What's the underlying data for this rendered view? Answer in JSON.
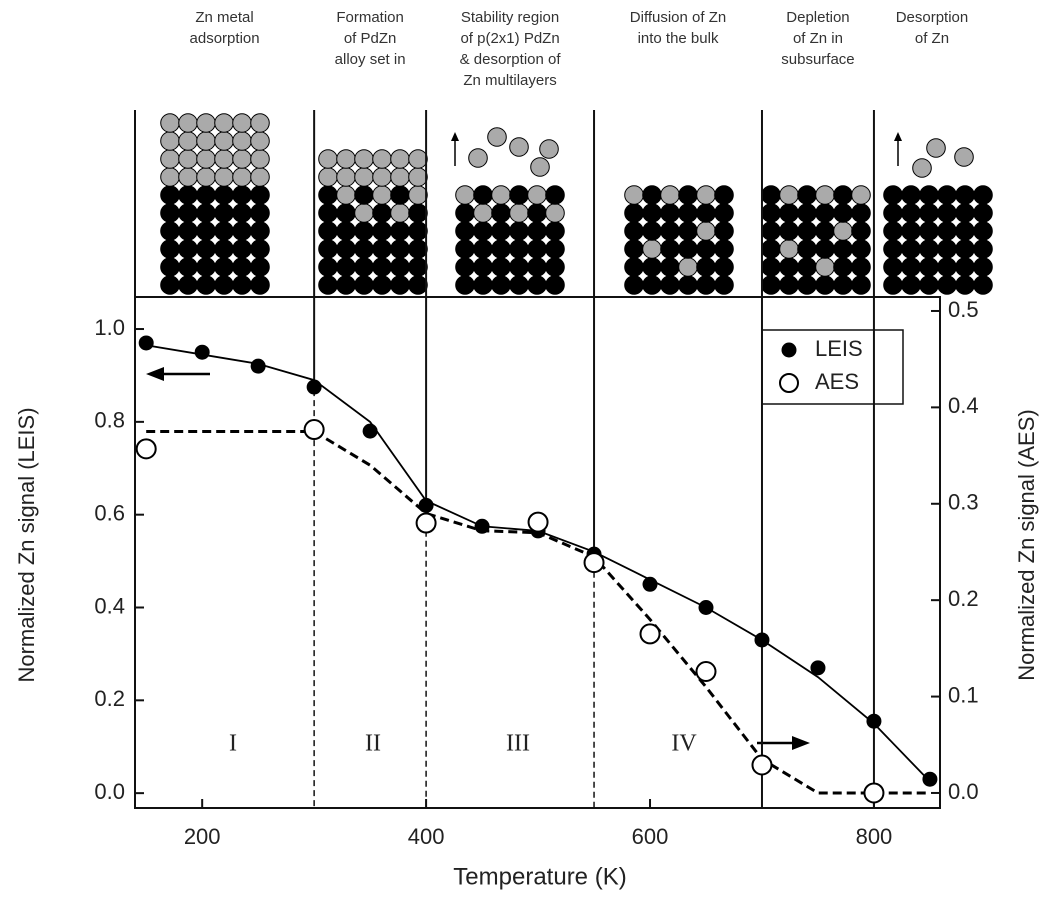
{
  "chart_data": {
    "type": "scatter",
    "stages": [
      [
        "Zn metal",
        "adsorption"
      ],
      [
        "Formation",
        "of PdZn",
        "alloy set in"
      ],
      [
        "Stability  region",
        "of p(2x1) PdZn",
        "& desorption of",
        "Zn multilayers"
      ],
      [
        "Diffusion of Zn",
        "into the bulk"
      ],
      [
        "Depletion",
        "of Zn in",
        "subsurface"
      ],
      [
        "Desorption",
        "of Zn"
      ]
    ],
    "xlabel": "Temperature (K)",
    "ylabel": "Normalized Zn signal  (LEIS)",
    "y2label": "Normalized Zn signal (AES)",
    "xlim": [
      140,
      859
    ],
    "ylim": [
      -0.032,
      1.069
    ],
    "y2lim": [
      -0.0156,
      0.5145
    ],
    "xticks": [
      200,
      400,
      600,
      800
    ],
    "yticks": [
      {
        "value": 0,
        "label": "0.0"
      },
      {
        "value": 0.2,
        "label": "0.2"
      },
      {
        "value": 0.4,
        "label": "0.4"
      },
      {
        "value": 0.6,
        "label": "0.6"
      },
      {
        "value": 0.8,
        "label": "0.8"
      },
      {
        "value": 1,
        "label": "1.0"
      }
    ],
    "y2ticks": [
      {
        "value": 0,
        "label": "0.0"
      },
      0.1,
      0.2,
      0.3,
      0.4,
      0.5
    ],
    "region_labels": [
      "I",
      "II",
      "III",
      "IV"
    ],
    "boundaries": [
      {
        "x": 300,
        "style": "split"
      },
      {
        "x": 400,
        "style": "split"
      },
      {
        "x": 550,
        "style": "split"
      },
      {
        "x": 700,
        "style": "solid"
      },
      {
        "x": 800,
        "style": "solid"
      }
    ],
    "series": [
      {
        "name": "LEIS",
        "kind": "points",
        "marker": "filled",
        "color": "#000000",
        "axis": "y",
        "x": [
          150,
          200,
          250,
          300,
          350,
          400,
          450,
          500,
          550,
          600,
          650,
          700,
          750,
          800,
          850
        ],
        "values": [
          0.97,
          0.95,
          0.92,
          0.875,
          0.78,
          0.62,
          0.575,
          0.565,
          0.515,
          0.45,
          0.4,
          0.33,
          0.27,
          0.155,
          0.03
        ]
      },
      {
        "name": "AES",
        "kind": "points",
        "marker": "open",
        "color": "#000000",
        "axis": "y2",
        "x": [
          150,
          300,
          400,
          500,
          550,
          600,
          650,
          700,
          800
        ],
        "values": [
          0.357,
          0.377,
          0.28,
          0.281,
          0.239,
          0.165,
          0.126,
          0.029,
          0.0
        ]
      },
      {
        "kind": "line",
        "dash": false,
        "color": "#000000",
        "axis": "y",
        "x": [
          150,
          200,
          250,
          300,
          350,
          400,
          450,
          500,
          550,
          600,
          650,
          700,
          750,
          800,
          850
        ],
        "values": [
          0.965,
          0.945,
          0.925,
          0.89,
          0.8,
          0.63,
          0.575,
          0.565,
          0.52,
          0.46,
          0.4,
          0.33,
          0.25,
          0.15,
          0.025
        ]
      },
      {
        "kind": "line",
        "dash": true,
        "color": "#000000",
        "axis": "y2",
        "x": [
          150,
          300,
          350,
          400,
          450,
          500,
          550,
          600,
          650,
          700,
          750,
          850
        ],
        "values": [
          0.375,
          0.375,
          0.34,
          0.29,
          0.272,
          0.27,
          0.245,
          0.18,
          0.11,
          0.035,
          0.0,
          0.0
        ]
      }
    ]
  }
}
